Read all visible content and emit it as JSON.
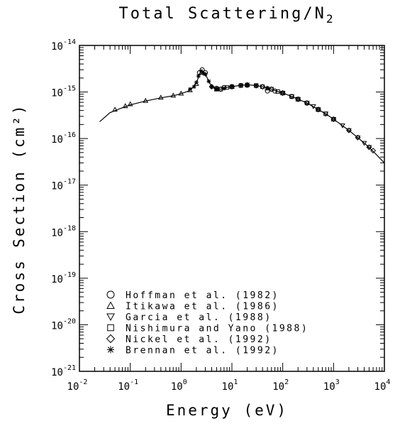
{
  "chart_data": {
    "type": "scatter",
    "title": "Total Scattering/N",
    "title_subscript": "2",
    "xlabel": "Energy (eV)",
    "ylabel": "Cross Section (cm²)",
    "x_scale": "log",
    "y_scale": "log",
    "xlim": [
      0.01,
      10000
    ],
    "ylim": [
      1e-21,
      1e-14
    ],
    "grid": false,
    "legend_position": "bottom-left",
    "x_ticks": [
      {
        "base": "10",
        "exp": "-2",
        "value": 0.01
      },
      {
        "base": "10",
        "exp": "-1",
        "value": 0.1
      },
      {
        "base": "10",
        "exp": "0",
        "value": 1
      },
      {
        "base": "10",
        "exp": "1",
        "value": 10
      },
      {
        "base": "10",
        "exp": "2",
        "value": 100
      },
      {
        "base": "10",
        "exp": "3",
        "value": 1000
      },
      {
        "base": "10",
        "exp": "4",
        "value": 10000
      }
    ],
    "y_ticks": [
      {
        "base": "10",
        "exp": "-21",
        "value": 1e-21
      },
      {
        "base": "10",
        "exp": "-20",
        "value": 1e-20
      },
      {
        "base": "10",
        "exp": "-19",
        "value": 1e-19
      },
      {
        "base": "10",
        "exp": "-18",
        "value": 1e-18
      },
      {
        "base": "10",
        "exp": "-17",
        "value": 1e-17
      },
      {
        "base": "10",
        "exp": "-16",
        "value": 1e-16
      },
      {
        "base": "10",
        "exp": "-15",
        "value": 1e-15
      },
      {
        "base": "10",
        "exp": "-14",
        "value": 1e-14
      }
    ],
    "recommended_curve": {
      "x": [
        0.025,
        0.04,
        0.06,
        0.1,
        0.2,
        0.4,
        0.7,
        1.0,
        1.4,
        1.8,
        2.1,
        2.3,
        2.5,
        2.7,
        2.9,
        3.2,
        3.6,
        4.0,
        4.5,
        5.0,
        6,
        7,
        8,
        10,
        14,
        18,
        22,
        30,
        40,
        60,
        80,
        100,
        150,
        200,
        300,
        500,
        700,
        1000,
        2000,
        3000,
        5000,
        7000,
        10000
      ],
      "y": [
        2.3e-16,
        3.6e-16,
        4.3e-16,
        5.3e-16,
        6.4e-16,
        7.5e-16,
        8.3e-16,
        9.2e-16,
        1.05e-15,
        1.3e-15,
        1.8e-15,
        2.4e-15,
        2.8e-15,
        2.6e-15,
        2.4e-15,
        2.1e-15,
        1.6e-15,
        1.3e-15,
        1.2e-15,
        1.15e-15,
        1.15e-15,
        1.2e-15,
        1.25e-15,
        1.3e-15,
        1.38e-15,
        1.42e-15,
        1.42e-15,
        1.38e-15,
        1.3e-15,
        1.15e-15,
        1.02e-15,
        9.5e-16,
        8e-16,
        7e-16,
        5.8e-16,
        4.2e-16,
        3.4e-16,
        2.6e-16,
        1.5e-16,
        1.05e-16,
        6.5e-17,
        4.5e-17,
        3e-17
      ]
    },
    "series": [
      {
        "name": "Hoffman et al. (1982)",
        "marker": "circle",
        "x": [
          2.3,
          2.6,
          3.0,
          5,
          7,
          10,
          15,
          20,
          30,
          50,
          70,
          100,
          150,
          200,
          300,
          500
        ],
        "y": [
          2.6e-15,
          3e-15,
          2.6e-15,
          1.2e-15,
          1.25e-15,
          1.3e-15,
          1.38e-15,
          1.4e-15,
          1.36e-15,
          1.05e-15,
          1.05e-15,
          9.5e-16,
          8e-16,
          7e-16,
          5.8e-16,
          4.2e-16
        ]
      },
      {
        "name": "Itikawa et al. (1986)",
        "marker": "triangle-up",
        "x": [
          0.05,
          0.08,
          0.1,
          0.2,
          0.4,
          0.7,
          1.0,
          1.5,
          2.0,
          2.5,
          5,
          10,
          20,
          50,
          100,
          200,
          500,
          1000
        ],
        "y": [
          4.2e-16,
          5e-16,
          5.5e-16,
          6.5e-16,
          7.6e-16,
          8.4e-16,
          9.3e-16,
          1.1e-15,
          1.5e-15,
          2.6e-15,
          1.15e-15,
          1.3e-15,
          1.42e-15,
          1.2e-15,
          9.5e-16,
          7e-16,
          4.2e-16,
          2.6e-16
        ]
      },
      {
        "name": "Garcia et al. (1988)",
        "marker": "triangle-down",
        "x": [
          100,
          150,
          200,
          300,
          400,
          500,
          700,
          1000,
          1500,
          2000,
          3000,
          4000,
          5000
        ],
        "y": [
          9.5e-16,
          8e-16,
          7e-16,
          5.8e-16,
          4.9e-16,
          4.2e-16,
          3.4e-16,
          2.6e-16,
          1.9e-16,
          1.5e-16,
          1.05e-16,
          8e-17,
          6.5e-17
        ]
      },
      {
        "name": "Nishimura and Yano (1988)",
        "marker": "square",
        "x": [
          5,
          6,
          8,
          10,
          15,
          20,
          30,
          40,
          60,
          80,
          100,
          150,
          200,
          300,
          500,
          700,
          1000
        ],
        "y": [
          1.15e-15,
          1.15e-15,
          1.25e-15,
          1.3e-15,
          1.38e-15,
          1.42e-15,
          1.38e-15,
          1.3e-15,
          1.15e-15,
          1.02e-15,
          9.5e-16,
          8e-16,
          7e-16,
          5.8e-16,
          4.2e-16,
          3.4e-16,
          2.6e-16
        ]
      },
      {
        "name": "Nickel et al. (1992)",
        "marker": "diamond",
        "x": [
          4,
          6,
          10,
          20,
          40,
          60,
          100,
          200,
          300,
          500,
          1000,
          2000,
          3000,
          5000,
          6000
        ],
        "y": [
          1.3e-15,
          1.15e-15,
          1.3e-15,
          1.42e-15,
          1.3e-15,
          1.15e-15,
          9.5e-16,
          7e-16,
          5.8e-16,
          4.2e-16,
          2.6e-16,
          1.5e-16,
          1.05e-16,
          6.5e-17,
          5.5e-17
        ]
      },
      {
        "name": "Brennan et al. (1992)",
        "marker": "asterisk",
        "x": [
          1.5,
          1.8,
          2.0,
          2.2,
          2.5,
          2.8,
          3.0,
          3.5,
          4.0,
          5,
          7,
          10,
          15,
          20,
          30,
          50
        ],
        "y": [
          1.15e-15,
          1.3e-15,
          1.6e-15,
          2.2e-15,
          2.8e-15,
          2.5e-15,
          2.4e-15,
          1.7e-15,
          1.3e-15,
          1.15e-15,
          1.2e-15,
          1.3e-15,
          1.38e-15,
          1.42e-15,
          1.38e-15,
          1.22e-15
        ]
      }
    ]
  }
}
